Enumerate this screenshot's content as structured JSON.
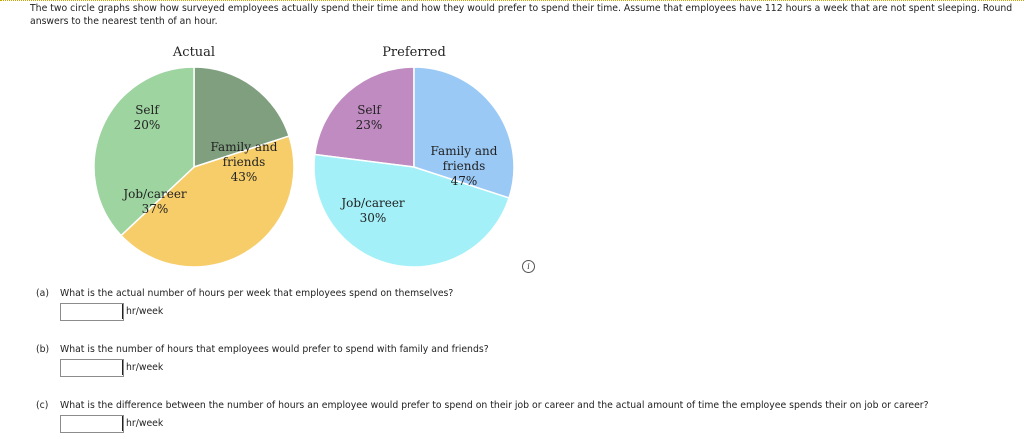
{
  "intro_text": "The two circle graphs show how surveyed employees actually spend their time and how they would prefer to spend their time. Assume that employees have 112 hours a week that are not spent sleeping. Round answers to the nearest tenth of an hour.",
  "chart_data": [
    {
      "type": "pie",
      "title": "Actual",
      "slices": [
        {
          "label_lines": [
            "Self"
          ],
          "value": 20,
          "value_label": "20%",
          "color": "#7f9f7f"
        },
        {
          "label_lines": [
            "Family and",
            "friends"
          ],
          "value": 43,
          "value_label": "43%",
          "color": "#f7cd6a"
        },
        {
          "label_lines": [
            "Job/career"
          ],
          "value": 37,
          "value_label": "37%",
          "color": "#9dd4a0"
        }
      ]
    },
    {
      "type": "pie",
      "title": "Preferred",
      "slices": [
        {
          "label_lines": [
            "Self"
          ],
          "value": 23,
          "value_label": "23%",
          "color": "#c08bc1"
        },
        {
          "label_lines": [
            "Family and",
            "friends"
          ],
          "value": 47,
          "value_label": "47%",
          "color": "#a3f0f8"
        },
        {
          "label_lines": [
            "Job/career"
          ],
          "value": 30,
          "value_label": "30%",
          "color": "#9bc9f6"
        }
      ]
    }
  ],
  "info_icon": "info-icon",
  "questions": [
    {
      "part": "(a)",
      "text": "What is the actual number of hours per week that employees spend on themselves?",
      "unit": "hr/week",
      "value": ""
    },
    {
      "part": "(b)",
      "text": "What is the number of hours that employees would prefer to spend with family and friends?",
      "unit": "hr/week",
      "value": ""
    },
    {
      "part": "(c)",
      "text": "What is the difference between the number of hours an employee would prefer to spend on their job or career and the actual amount of time the employee spends their on job or career?",
      "unit": "hr/week",
      "value": ""
    }
  ]
}
